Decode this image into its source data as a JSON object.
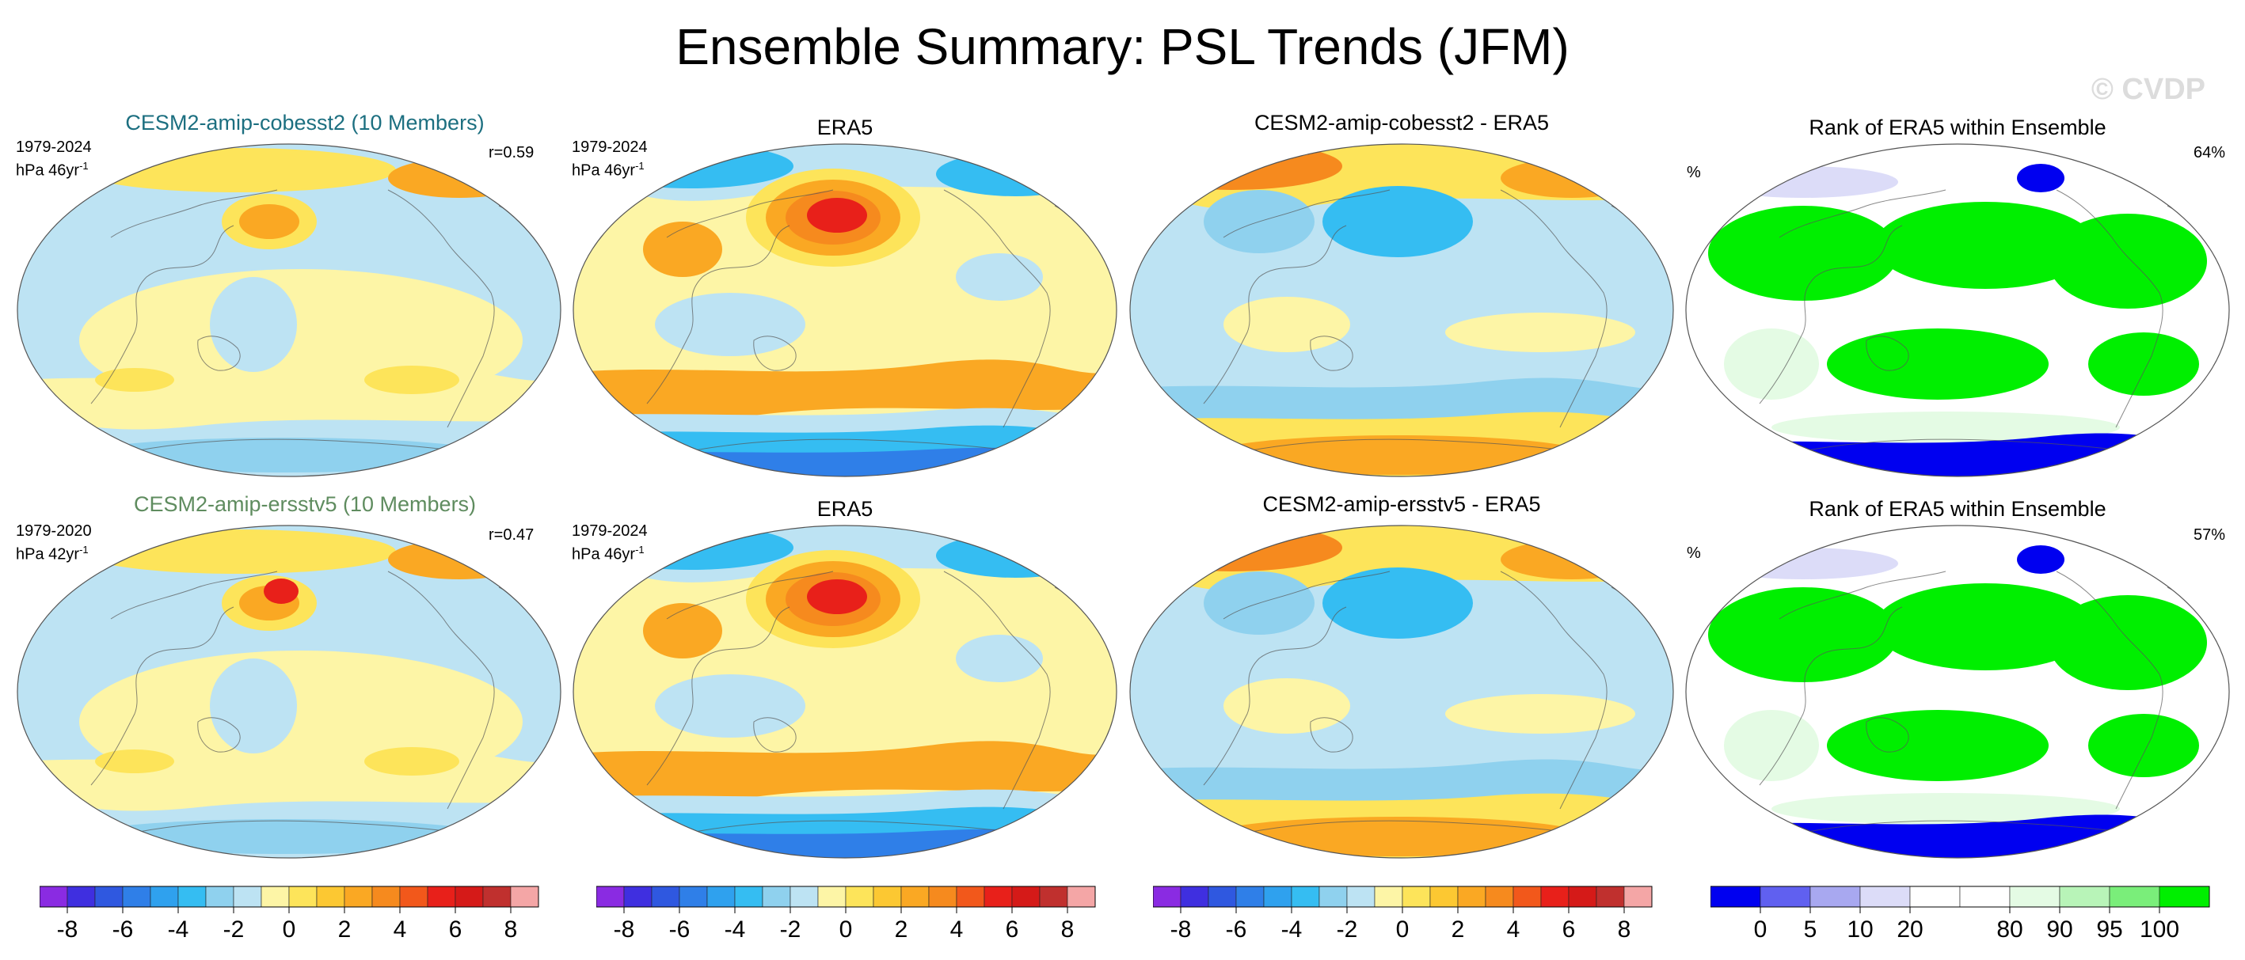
{
  "title": "Ensemble Summary: PSL Trends (JFM)",
  "watermark": "© CVDP",
  "rows": [
    {
      "model": {
        "title": "CESM2-amip-cobesst2 (10 Members)",
        "title_color": "#1c6f80",
        "period": "1979-2024",
        "units": "hPa 46yr",
        "units_sup": "-1",
        "corr": "r=0.59"
      },
      "obs": {
        "title": "ERA5",
        "period": "1979-2024",
        "units": "hPa 46yr",
        "units_sup": "-1"
      },
      "diff": {
        "title": "CESM2-amip-cobesst2 - ERA5"
      },
      "rank": {
        "title": "Rank of ERA5 within Ensemble",
        "unit": "%",
        "percent": "64%"
      }
    },
    {
      "model": {
        "title": "CESM2-amip-ersstv5 (10 Members)",
        "title_color": "#5f8c5f",
        "period": "1979-2020",
        "units": "hPa 42yr",
        "units_sup": "-1",
        "corr": "r=0.47"
      },
      "obs": {
        "title": "ERA5",
        "period": "1979-2024",
        "units": "hPa 46yr",
        "units_sup": "-1"
      },
      "diff": {
        "title": "CESM2-amip-ersstv5 - ERA5"
      },
      "rank": {
        "title": "Rank of ERA5 within Ensemble",
        "unit": "%",
        "percent": "57%"
      }
    }
  ],
  "colorbars": {
    "trend": {
      "colors": [
        "#8a2be2",
        "#3f2fe0",
        "#2f58e0",
        "#2f7fe8",
        "#2fa1ee",
        "#35bdf2",
        "#8fd1ee",
        "#bde3f3",
        "#fdf5a6",
        "#fde45a",
        "#fcc832",
        "#faa823",
        "#f68a1e",
        "#f2581b",
        "#e8201a",
        "#d51a18",
        "#c0302e",
        "#f4a6a6"
      ],
      "ticks": [
        "-8",
        "-6",
        "-4",
        "-2",
        "0",
        "2",
        "4",
        "6",
        "8"
      ]
    },
    "rank": {
      "colors": [
        "#0000f0",
        "#6060f0",
        "#a8a8f0",
        "#dcdcf8",
        "#ffffff",
        "#ffffff",
        "#e4fbe4",
        "#b8f4b8",
        "#7aee7a",
        "#00ef00"
      ],
      "ticks": [
        "0",
        "5",
        "10",
        "20",
        "80",
        "90",
        "95",
        "100"
      ]
    }
  },
  "palette": {
    "blue_dark": "#2f7fe8",
    "blue_mid": "#35bdf2",
    "blue_light": "#bde3f3",
    "yellow_light": "#fdf5a6",
    "yellow": "#fde45a",
    "orange": "#faa823",
    "orange_dark": "#f68a1e",
    "red": "#e8201a",
    "rank_green": "#00ef00",
    "rank_lightgreen": "#e4fbe4",
    "rank_blue": "#0000f0",
    "rank_lavender": "#dcdcf8"
  }
}
